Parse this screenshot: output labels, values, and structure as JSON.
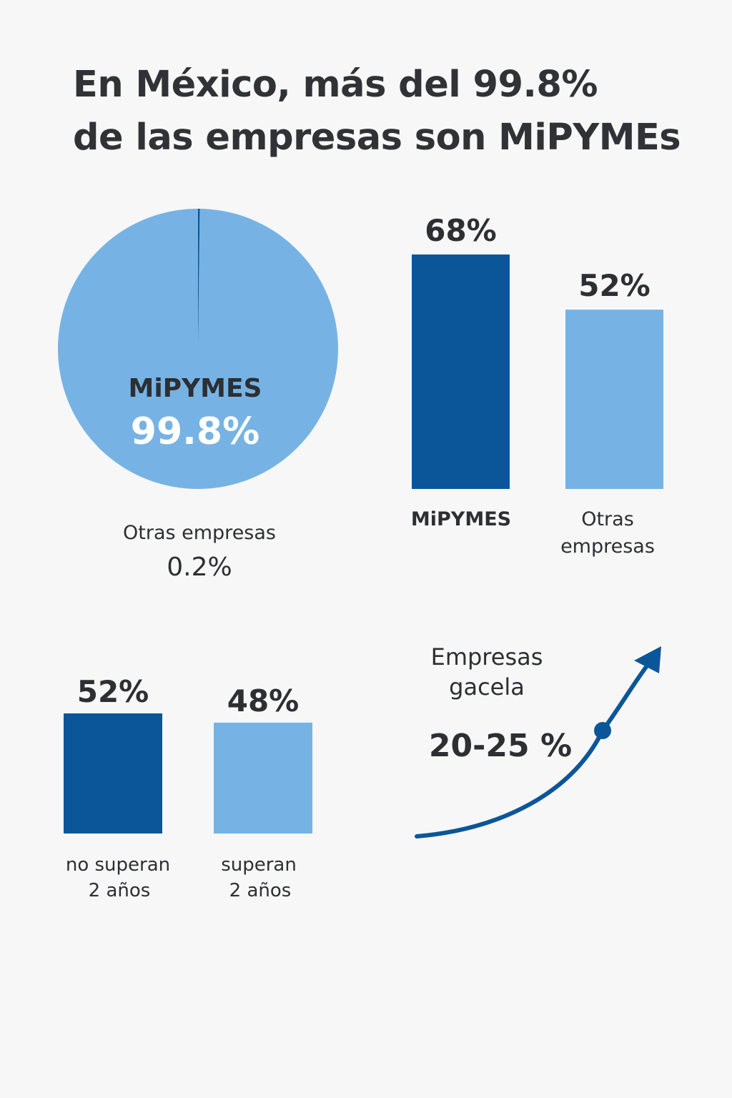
{
  "title": {
    "line1": "En México, más del 99.8%",
    "line2": "de las empresas son MiPYMEs"
  },
  "colors": {
    "dark_blue": "#0b5699",
    "light_blue": "#76b3e4",
    "text": "#2d2f33",
    "background": "#f7f7f7"
  },
  "chart_data": [
    {
      "type": "pie",
      "slices": [
        {
          "name": "MiPYMES",
          "value": 99.8,
          "label": "99.8%",
          "color": "#76b3e4"
        },
        {
          "name": "Otras empresas",
          "value": 0.2,
          "label": "0.2%",
          "color": "#0b5699"
        }
      ]
    },
    {
      "type": "bar",
      "categories": [
        "MiPYMES",
        "Otras empresas"
      ],
      "category_lines": [
        [
          "MiPYMES"
        ],
        [
          "Otras",
          "empresas"
        ]
      ],
      "values": [
        68,
        52
      ],
      "value_labels": [
        "68%",
        "52%"
      ],
      "colors": [
        "#0b5699",
        "#76b3e4"
      ],
      "ylim": [
        0,
        68
      ]
    },
    {
      "type": "bar",
      "categories": [
        "no superan 2 años",
        "superan 2 años"
      ],
      "category_lines": [
        [
          "no superan",
          "2 años"
        ],
        [
          "superan",
          "2 años"
        ]
      ],
      "values": [
        52,
        48
      ],
      "value_labels": [
        "52%",
        "48%"
      ],
      "colors": [
        "#0b5699",
        "#76b3e4"
      ],
      "ylim": [
        0,
        52
      ]
    },
    {
      "type": "line",
      "label_lines": [
        "Empresas",
        "gacela"
      ],
      "value_label": "20-25 %",
      "trend": "up",
      "color": "#0b5699"
    }
  ]
}
